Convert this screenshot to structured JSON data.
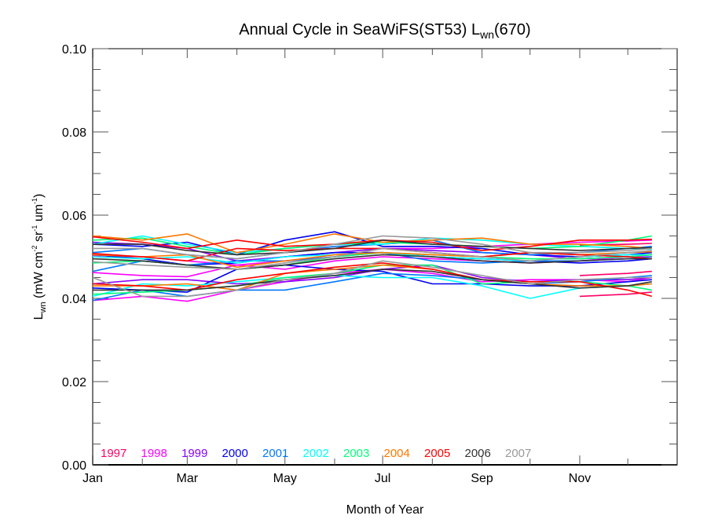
{
  "chart_data": {
    "type": "line",
    "title": "Annual Cycle in SeaWiFS(ST53) L",
    "title_sub": "wn",
    "title_suffix": "(670)",
    "xlabel": "Month of Year",
    "ylabel_main": "L",
    "ylabel_sub": "wn",
    "ylabel_rest": " (mW cm",
    "ylabel_sup1": "-2",
    "ylabel_mid": " sr",
    "ylabel_sup2": "-1",
    "ylabel_mid2": " um",
    "ylabel_sup3": "-1",
    "ylabel_end": ")",
    "xlim": [
      0,
      365
    ],
    "ylim": [
      0.0,
      0.1
    ],
    "grid": false,
    "legend_placement": "bottom-left",
    "x_tick_labels": [
      "Jan",
      "Mar",
      "May",
      "Jul",
      "Sep",
      "Nov"
    ],
    "x_tick_days": [
      0,
      59,
      120,
      181,
      243,
      304
    ],
    "y_tick_labels": [
      "0.00",
      "0.02",
      "0.04",
      "0.06",
      "0.08",
      "0.10"
    ],
    "y_ticks": [
      0.0,
      0.02,
      0.04,
      0.06,
      0.08,
      0.1
    ],
    "x_days": [
      0,
      31,
      59,
      90,
      120,
      151,
      181,
      212,
      243,
      273,
      304,
      334,
      349
    ],
    "legend": [
      {
        "label": "1997",
        "color": "#ff0066"
      },
      {
        "label": "1998",
        "color": "#ff00ff"
      },
      {
        "label": "1999",
        "color": "#8800ff"
      },
      {
        "label": "2000",
        "color": "#0000ee"
      },
      {
        "label": "2001",
        "color": "#0077ff"
      },
      {
        "label": "2002",
        "color": "#00ffff"
      },
      {
        "label": "2003",
        "color": "#00ff77"
      },
      {
        "label": "2004",
        "color": "#ff7700"
      },
      {
        "label": "2005",
        "color": "#ff0000"
      },
      {
        "label": "2006",
        "color": "#333333"
      },
      {
        "label": "2007",
        "color": "#999999"
      }
    ],
    "series": [
      {
        "name": "1997",
        "color": "#ff0066",
        "values": [
          null,
          null,
          null,
          null,
          null,
          null,
          null,
          null,
          null,
          null,
          0.0528,
          0.053,
          0.0532
        ]
      },
      {
        "name": "1997",
        "color": "#ff0066",
        "values": [
          null,
          null,
          null,
          null,
          null,
          null,
          null,
          null,
          null,
          null,
          0.0455,
          0.046,
          0.0465
        ]
      },
      {
        "name": "1997",
        "color": "#ff0066",
        "values": [
          null,
          null,
          null,
          null,
          null,
          null,
          null,
          null,
          null,
          null,
          0.0405,
          0.041,
          0.0415
        ]
      },
      {
        "name": "1998",
        "color": "#ff00ff",
        "values": [
          0.0395,
          0.0405,
          0.0393,
          0.042,
          0.044,
          0.046,
          0.047,
          0.046,
          0.044,
          0.0445,
          0.0445,
          0.044,
          0.045
        ]
      },
      {
        "name": "1998",
        "color": "#ff00ff",
        "values": [
          0.0462,
          0.0455,
          0.0452,
          0.048,
          0.047,
          0.049,
          0.05,
          0.0495,
          0.049,
          0.0485,
          0.049,
          0.05,
          0.05
        ]
      },
      {
        "name": "1998",
        "color": "#ff00ff",
        "values": [
          0.0503,
          0.05,
          0.049,
          0.048,
          0.049,
          0.05,
          0.052,
          0.052,
          0.0525,
          0.053,
          0.0535,
          0.0538,
          0.054
        ]
      },
      {
        "name": "1999",
        "color": "#8800ff",
        "values": [
          0.0435,
          0.0445,
          0.0445,
          0.0435,
          0.044,
          0.045,
          0.047,
          0.048,
          0.045,
          0.044,
          0.0445,
          0.0445,
          0.045
        ]
      },
      {
        "name": "1999",
        "color": "#8800ff",
        "values": [
          0.0535,
          0.053,
          0.052,
          0.049,
          0.05,
          0.051,
          0.052,
          0.0515,
          0.051,
          0.0505,
          0.0495,
          0.05,
          0.0505
        ]
      },
      {
        "name": "2000",
        "color": "#0000ee",
        "values": [
          0.0425,
          0.042,
          0.0415,
          0.047,
          0.048,
          0.047,
          0.0465,
          0.0435,
          0.0435,
          0.043,
          0.043,
          0.044,
          0.0445
        ]
      },
      {
        "name": "2000",
        "color": "#0000ee",
        "values": [
          0.053,
          0.0525,
          0.0535,
          0.0505,
          0.054,
          0.056,
          0.0525,
          0.0525,
          0.052,
          0.0505,
          0.05,
          0.0505,
          0.051
        ]
      },
      {
        "name": "2000",
        "color": "#0000ee",
        "values": [
          0.0505,
          0.0495,
          0.048,
          0.0485,
          0.05,
          0.051,
          0.051,
          0.05,
          0.0495,
          0.049,
          0.0485,
          0.049,
          0.0495
        ]
      },
      {
        "name": "2001",
        "color": "#0077ff",
        "values": [
          0.0395,
          0.042,
          0.0405,
          0.042,
          0.042,
          0.044,
          0.046,
          0.0455,
          0.0445,
          0.0435,
          0.044,
          0.045,
          0.0455
        ]
      },
      {
        "name": "2001",
        "color": "#0077ff",
        "values": [
          0.0465,
          0.049,
          0.048,
          0.049,
          0.049,
          0.05,
          0.051,
          0.049,
          0.0485,
          0.049,
          0.049,
          0.0495,
          0.05
        ]
      },
      {
        "name": "2001",
        "color": "#0077ff",
        "values": [
          0.051,
          0.052,
          0.0505,
          0.0495,
          0.051,
          0.0525,
          0.053,
          0.054,
          0.051,
          0.0505,
          0.051,
          0.052,
          0.0525
        ]
      },
      {
        "name": "2002",
        "color": "#00ffff",
        "values": [
          0.0405,
          0.0435,
          0.043,
          0.044,
          0.045,
          0.0455,
          0.045,
          0.045,
          0.043,
          0.04,
          0.0425,
          0.043,
          0.0435
        ]
      },
      {
        "name": "2002",
        "color": "#00ffff",
        "values": [
          0.05,
          0.0495,
          0.05,
          0.0485,
          0.05,
          0.0505,
          0.051,
          0.05,
          0.0495,
          0.049,
          0.05,
          0.0505,
          0.0505
        ]
      },
      {
        "name": "2002",
        "color": "#00ffff",
        "values": [
          0.053,
          0.055,
          0.053,
          0.051,
          0.052,
          0.053,
          0.053,
          0.0545,
          0.054,
          0.053,
          0.0525,
          0.052,
          0.0518
        ]
      },
      {
        "name": "2003",
        "color": "#00ff77",
        "values": [
          0.041,
          0.0415,
          0.042,
          0.043,
          0.045,
          0.046,
          0.048,
          0.048,
          0.0435,
          0.044,
          0.044,
          0.043,
          0.042
        ]
      },
      {
        "name": "2003",
        "color": "#00ff77",
        "values": [
          0.0485,
          0.049,
          0.048,
          0.047,
          0.048,
          0.05,
          0.051,
          0.0505,
          0.05,
          0.0495,
          0.0495,
          0.05,
          0.0505
        ]
      },
      {
        "name": "2003",
        "color": "#00ff77",
        "values": [
          0.054,
          0.0545,
          0.0525,
          0.0505,
          0.052,
          0.053,
          0.0535,
          0.053,
          0.0525,
          0.052,
          0.0525,
          0.054,
          0.055
        ]
      },
      {
        "name": "2004",
        "color": "#ff7700",
        "values": [
          0.043,
          0.043,
          0.0435,
          0.042,
          0.046,
          0.047,
          0.048,
          0.047,
          0.0445,
          0.0435,
          0.043,
          0.043,
          0.0435
        ]
      },
      {
        "name": "2004",
        "color": "#ff7700",
        "values": [
          0.0505,
          0.05,
          0.0505,
          0.0475,
          0.049,
          0.0505,
          0.051,
          0.0505,
          0.05,
          0.051,
          0.0505,
          0.051,
          0.0512
        ]
      },
      {
        "name": "2004",
        "color": "#ff7700",
        "values": [
          0.055,
          0.054,
          0.0555,
          0.051,
          0.053,
          0.0555,
          0.0535,
          0.054,
          0.0545,
          0.053,
          0.053,
          0.0525,
          0.052
        ]
      },
      {
        "name": "2005",
        "color": "#ff0000",
        "values": [
          0.0435,
          0.043,
          0.042,
          0.0445,
          0.046,
          0.0475,
          0.0485,
          0.047,
          0.0445,
          0.044,
          0.044,
          0.042,
          0.0405
        ]
      },
      {
        "name": "2005",
        "color": "#ff0000",
        "values": [
          0.0508,
          0.05,
          0.049,
          0.052,
          0.0515,
          0.052,
          0.052,
          0.051,
          0.05,
          0.051,
          0.0505,
          0.05,
          0.0495
        ]
      },
      {
        "name": "2005",
        "color": "#ff0000",
        "values": [
          0.0548,
          0.0535,
          0.052,
          0.054,
          0.0525,
          0.053,
          0.054,
          0.0535,
          0.0515,
          0.0525,
          0.054,
          0.054,
          0.0542
        ]
      },
      {
        "name": "2006",
        "color": "#333333",
        "values": [
          0.042,
          0.042,
          0.042,
          0.043,
          0.0445,
          0.0455,
          0.047,
          0.0465,
          0.0445,
          0.0435,
          0.0425,
          0.043,
          0.044
        ]
      },
      {
        "name": "2006",
        "color": "#333333",
        "values": [
          0.0495,
          0.049,
          0.048,
          0.047,
          0.048,
          0.0495,
          0.0505,
          0.05,
          0.049,
          0.0485,
          0.049,
          0.0495,
          0.0495
        ]
      },
      {
        "name": "2006",
        "color": "#333333",
        "values": [
          0.053,
          0.053,
          0.0515,
          0.0505,
          0.051,
          0.052,
          0.054,
          0.053,
          0.0525,
          0.052,
          0.0515,
          0.052,
          0.0522
        ]
      },
      {
        "name": "2007",
        "color": "#999999",
        "values": [
          0.045,
          0.0405,
          0.0405,
          0.042,
          0.0445,
          0.046,
          0.049,
          0.0475,
          0.0455,
          0.0435,
          0.0445,
          0.045,
          0.045
        ]
      },
      {
        "name": "2007",
        "color": "#999999",
        "values": [
          0.0488,
          0.048,
          0.0475,
          0.047,
          0.0485,
          0.05,
          0.052,
          0.051,
          0.05,
          0.049,
          0.05,
          0.051,
          0.0515
        ]
      },
      {
        "name": "2007",
        "color": "#999999",
        "values": [
          0.052,
          0.052,
          0.0505,
          0.0495,
          0.051,
          0.053,
          0.055,
          0.0545,
          0.053,
          0.051,
          0.051,
          0.0515,
          0.052
        ]
      }
    ]
  }
}
